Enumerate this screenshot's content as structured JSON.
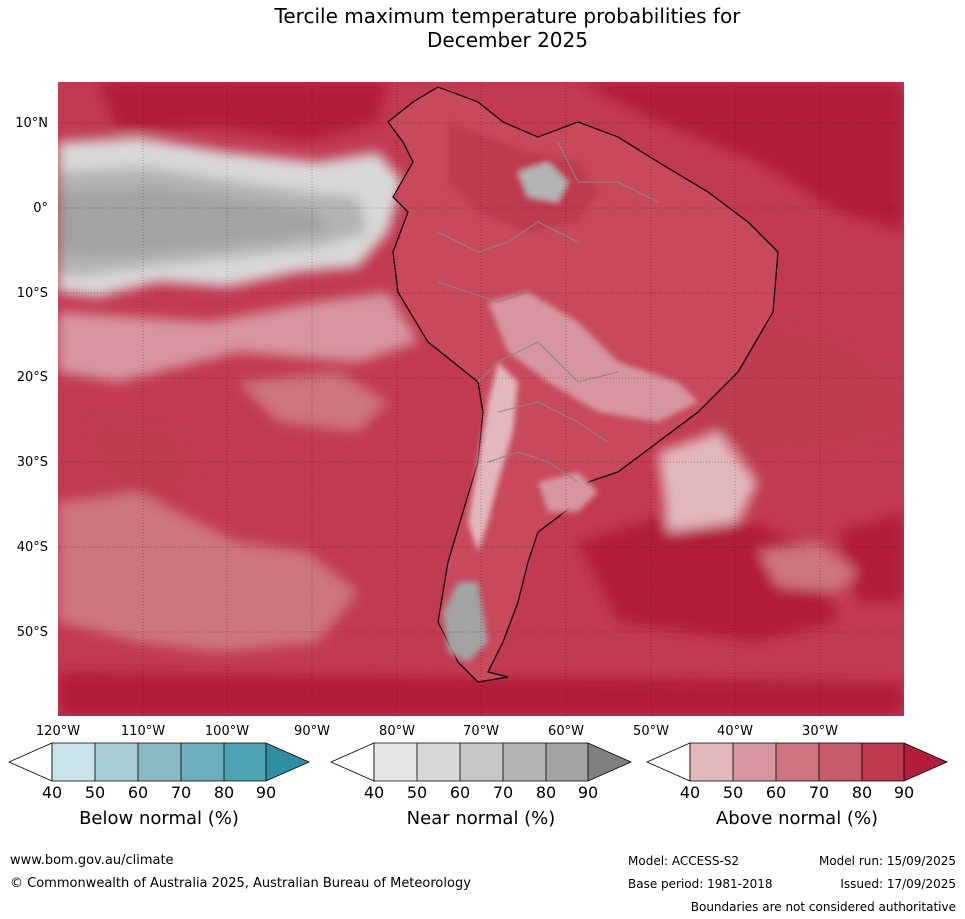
{
  "title": {
    "line1": "Tercile maximum temperature probabilities for",
    "line2": "December 2025"
  },
  "map": {
    "lat_labels": [
      "10°N",
      "0°",
      "10°S",
      "20°S",
      "30°S",
      "40°S",
      "50°S"
    ],
    "lon_labels": [
      "120°W",
      "110°W",
      "100°W",
      "90°W",
      "80°W",
      "70°W",
      "60°W",
      "50°W",
      "40°W",
      "30°W"
    ],
    "colors": {
      "ocean_above": "#c23a52",
      "land_above": "#c8485c",
      "near_normal": "#a8a8a8"
    }
  },
  "colorbars": [
    {
      "title": "Below normal (%)",
      "ticks": [
        "40",
        "50",
        "60",
        "70",
        "80",
        "90"
      ],
      "colors": [
        "#c9e3ea",
        "#a8ccd3",
        "#8ab9c3",
        "#6caebd",
        "#4da3b4",
        "#2e8fa3"
      ]
    },
    {
      "title": "Near normal (%)",
      "ticks": [
        "40",
        "50",
        "60",
        "70",
        "80",
        "90"
      ],
      "colors": [
        "#e6e6e6",
        "#d8d8d8",
        "#c6c6c6",
        "#b4b4b4",
        "#a3a3a3",
        "#808080"
      ]
    },
    {
      "title": "Above normal (%)",
      "ticks": [
        "40",
        "50",
        "60",
        "70",
        "80",
        "90"
      ],
      "colors": [
        "#e2b8bc",
        "#d7969f",
        "#cd7480",
        "#c65b6a",
        "#bd3a4f",
        "#b21c3b"
      ]
    }
  ],
  "footer": {
    "website": "www.bom.gov.au/climate",
    "copyright": "© Commonwealth of Australia 2025, Australian Bureau of Meteorology",
    "model": "Model: ACCESS-S2",
    "base_period": "Base period: 1981-2018",
    "model_run": "Model run: 15/09/2025",
    "issued": "Issued: 17/09/2025",
    "disclaimer": "Boundaries are not considered authoritative"
  }
}
